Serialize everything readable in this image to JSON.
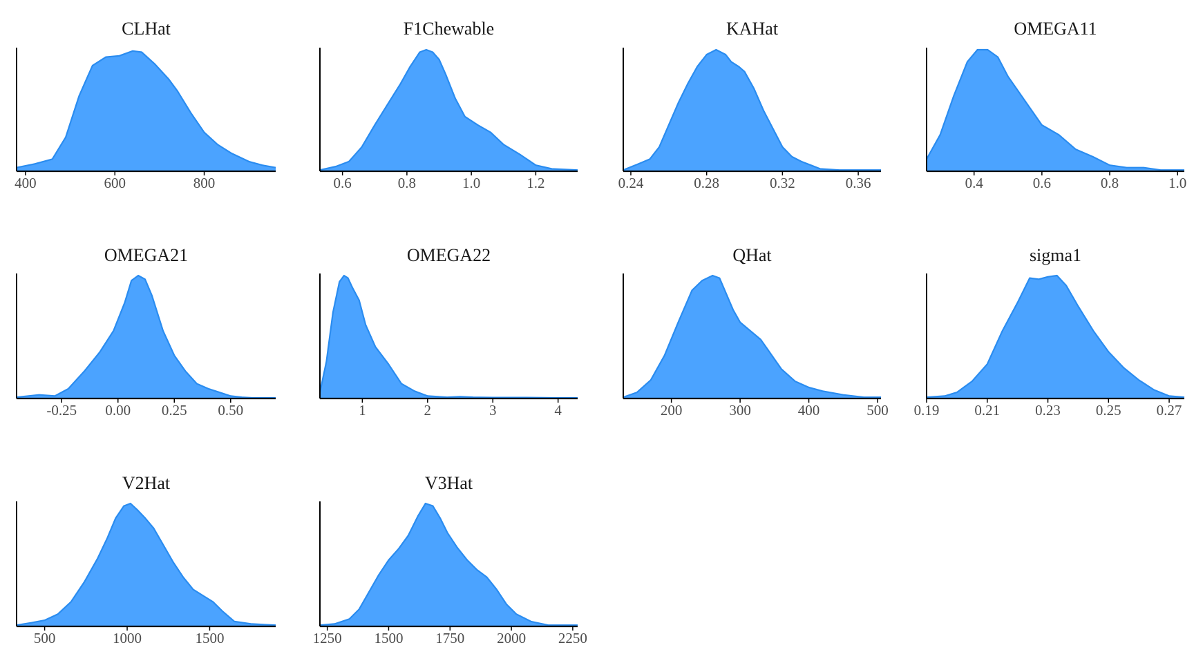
{
  "figure": {
    "fill_color": "#4BA3FF",
    "line_color": "#2A8CF0",
    "axis_color": "#000000",
    "tick_label_color": "#4d4d4d"
  },
  "chart_data": [
    {
      "type": "area",
      "title": "CLHat",
      "xlim": [
        380,
        960
      ],
      "ticks": [
        400,
        600,
        800
      ],
      "tick_labels": [
        "400",
        "600",
        "800"
      ],
      "x": [
        380,
        420,
        460,
        490,
        520,
        550,
        580,
        610,
        640,
        660,
        690,
        720,
        740,
        770,
        800,
        830,
        860,
        900,
        930,
        960
      ],
      "y": [
        0.03,
        0.06,
        0.1,
        0.28,
        0.62,
        0.87,
        0.94,
        0.95,
        0.99,
        0.98,
        0.88,
        0.76,
        0.66,
        0.48,
        0.32,
        0.22,
        0.15,
        0.08,
        0.05,
        0.03
      ]
    },
    {
      "type": "area",
      "title": "F1Chewable",
      "xlim": [
        0.53,
        1.33
      ],
      "ticks": [
        0.6,
        0.8,
        1.0,
        1.2
      ],
      "tick_labels": [
        "0.6",
        "0.8",
        "1.0",
        "1.2"
      ],
      "x": [
        0.53,
        0.58,
        0.62,
        0.66,
        0.7,
        0.74,
        0.78,
        0.81,
        0.84,
        0.86,
        0.88,
        0.9,
        0.92,
        0.95,
        0.98,
        1.02,
        1.06,
        1.1,
        1.15,
        1.2,
        1.25,
        1.33
      ],
      "y": [
        0.01,
        0.04,
        0.08,
        0.2,
        0.38,
        0.55,
        0.72,
        0.86,
        0.98,
        1.0,
        0.98,
        0.92,
        0.8,
        0.6,
        0.45,
        0.38,
        0.32,
        0.22,
        0.14,
        0.05,
        0.02,
        0.01
      ]
    },
    {
      "type": "area",
      "title": "KAHat",
      "xlim": [
        0.236,
        0.372
      ],
      "ticks": [
        0.24,
        0.28,
        0.32,
        0.36
      ],
      "tick_labels": [
        "0.24",
        "0.28",
        "0.32",
        "0.36"
      ],
      "x": [
        0.236,
        0.244,
        0.25,
        0.255,
        0.26,
        0.265,
        0.27,
        0.275,
        0.28,
        0.285,
        0.29,
        0.293,
        0.297,
        0.3,
        0.305,
        0.31,
        0.315,
        0.32,
        0.325,
        0.33,
        0.335,
        0.34,
        0.345,
        0.35,
        0.36,
        0.372
      ],
      "y": [
        0.01,
        0.06,
        0.1,
        0.2,
        0.38,
        0.56,
        0.72,
        0.86,
        0.96,
        1.0,
        0.96,
        0.9,
        0.86,
        0.82,
        0.68,
        0.5,
        0.35,
        0.2,
        0.12,
        0.08,
        0.05,
        0.02,
        0.015,
        0.01,
        0.01,
        0.01
      ]
    },
    {
      "type": "area",
      "title": "OMEGA11",
      "xlim": [
        0.26,
        1.02
      ],
      "ticks": [
        0.4,
        0.6,
        0.8,
        1.0
      ],
      "tick_labels": [
        "0.4",
        "0.6",
        "0.8",
        "1.0"
      ],
      "x": [
        0.26,
        0.3,
        0.34,
        0.38,
        0.41,
        0.44,
        0.47,
        0.5,
        0.55,
        0.6,
        0.65,
        0.7,
        0.75,
        0.8,
        0.85,
        0.9,
        0.95,
        1.02
      ],
      "y": [
        0.1,
        0.3,
        0.62,
        0.9,
        1.0,
        1.0,
        0.94,
        0.78,
        0.58,
        0.38,
        0.3,
        0.18,
        0.12,
        0.05,
        0.03,
        0.03,
        0.01,
        0.01
      ]
    },
    {
      "type": "area",
      "title": "OMEGA21",
      "xlim": [
        -0.45,
        0.7
      ],
      "ticks": [
        -0.25,
        0.0,
        0.25,
        0.5
      ],
      "tick_labels": [
        "-0.25",
        "0.00",
        "0.25",
        "0.50"
      ],
      "x": [
        -0.45,
        -0.35,
        -0.28,
        -0.22,
        -0.15,
        -0.08,
        -0.02,
        0.03,
        0.06,
        0.09,
        0.12,
        0.15,
        0.2,
        0.25,
        0.3,
        0.35,
        0.4,
        0.45,
        0.5,
        0.55,
        0.6,
        0.7
      ],
      "y": [
        0.01,
        0.03,
        0.02,
        0.08,
        0.22,
        0.38,
        0.55,
        0.78,
        0.96,
        1.0,
        0.97,
        0.84,
        0.55,
        0.35,
        0.22,
        0.12,
        0.08,
        0.05,
        0.02,
        0.01,
        0.005,
        0.005
      ]
    },
    {
      "type": "area",
      "title": "OMEGA22",
      "xlim": [
        0.35,
        4.3
      ],
      "ticks": [
        1,
        2,
        3,
        4
      ],
      "tick_labels": [
        "1",
        "2",
        "3",
        "4"
      ],
      "x": [
        0.35,
        0.45,
        0.55,
        0.65,
        0.72,
        0.78,
        0.85,
        0.95,
        1.05,
        1.2,
        1.4,
        1.6,
        1.8,
        2.0,
        2.3,
        2.5,
        2.7,
        3.0,
        3.5,
        4.0,
        4.3
      ],
      "y": [
        0.05,
        0.3,
        0.7,
        0.95,
        1.0,
        0.98,
        0.9,
        0.8,
        0.6,
        0.42,
        0.28,
        0.12,
        0.06,
        0.02,
        0.01,
        0.015,
        0.01,
        0.008,
        0.008,
        0.005,
        0.005
      ]
    },
    {
      "type": "area",
      "title": "QHat",
      "xlim": [
        130,
        505
      ],
      "ticks": [
        200,
        300,
        400,
        500
      ],
      "tick_labels": [
        "200",
        "300",
        "400",
        "500"
      ],
      "x": [
        130,
        150,
        170,
        190,
        210,
        230,
        245,
        260,
        270,
        280,
        290,
        300,
        315,
        330,
        340,
        360,
        380,
        400,
        420,
        450,
        480,
        505
      ],
      "y": [
        0.01,
        0.05,
        0.15,
        0.35,
        0.62,
        0.88,
        0.96,
        1.0,
        0.98,
        0.85,
        0.72,
        0.62,
        0.55,
        0.48,
        0.4,
        0.24,
        0.14,
        0.09,
        0.06,
        0.03,
        0.01,
        0.01
      ]
    },
    {
      "type": "area",
      "title": "sigma1",
      "xlim": [
        0.19,
        0.275
      ],
      "ticks": [
        0.19,
        0.21,
        0.23,
        0.25,
        0.27
      ],
      "tick_labels": [
        "0.19",
        "0.21",
        "0.23",
        "0.25",
        "0.27"
      ],
      "x": [
        0.19,
        0.196,
        0.2,
        0.205,
        0.21,
        0.215,
        0.22,
        0.224,
        0.227,
        0.23,
        0.233,
        0.236,
        0.24,
        0.245,
        0.25,
        0.255,
        0.26,
        0.265,
        0.27,
        0.275
      ],
      "y": [
        0.01,
        0.02,
        0.05,
        0.14,
        0.28,
        0.55,
        0.78,
        0.98,
        0.97,
        0.99,
        1.0,
        0.92,
        0.75,
        0.55,
        0.38,
        0.25,
        0.15,
        0.07,
        0.02,
        0.01
      ]
    },
    {
      "type": "area",
      "title": "V2Hat",
      "xlim": [
        330,
        1900
      ],
      "ticks": [
        500,
        1000,
        1500
      ],
      "tick_labels": [
        "500",
        "1000",
        "1500"
      ],
      "x": [
        330,
        420,
        500,
        580,
        660,
        740,
        820,
        880,
        930,
        980,
        1020,
        1060,
        1110,
        1160,
        1220,
        1280,
        1340,
        1400,
        1460,
        1520,
        1580,
        1650,
        1750,
        1900
      ],
      "y": [
        0.01,
        0.03,
        0.05,
        0.1,
        0.2,
        0.36,
        0.55,
        0.72,
        0.88,
        0.98,
        1.0,
        0.95,
        0.88,
        0.8,
        0.66,
        0.52,
        0.4,
        0.3,
        0.25,
        0.2,
        0.12,
        0.04,
        0.02,
        0.01
      ]
    },
    {
      "type": "area",
      "title": "V3Hat",
      "xlim": [
        1220,
        2270
      ],
      "ticks": [
        1250,
        1500,
        1750,
        2000,
        2250
      ],
      "tick_labels": [
        "1250",
        "1500",
        "1750",
        "2000",
        "2250"
      ],
      "x": [
        1220,
        1280,
        1340,
        1380,
        1420,
        1460,
        1500,
        1540,
        1580,
        1620,
        1650,
        1680,
        1710,
        1740,
        1780,
        1820,
        1860,
        1900,
        1940,
        1980,
        2020,
        2080,
        2150,
        2270
      ],
      "y": [
        0.01,
        0.02,
        0.06,
        0.14,
        0.28,
        0.42,
        0.54,
        0.63,
        0.74,
        0.9,
        1.0,
        0.98,
        0.88,
        0.76,
        0.64,
        0.54,
        0.46,
        0.4,
        0.3,
        0.18,
        0.1,
        0.04,
        0.01,
        0.01
      ]
    }
  ]
}
